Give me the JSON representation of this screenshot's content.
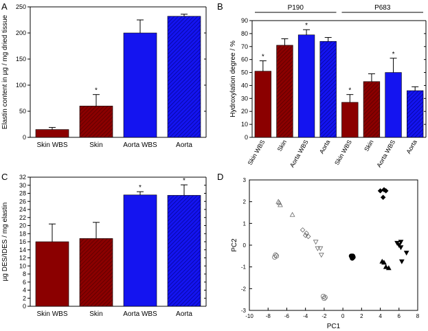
{
  "colors": {
    "dark_red": "#8b0000",
    "blue": "#1414f0",
    "dark_blue": "#0f0fa8",
    "axis": "#000000"
  },
  "chart_data": [
    {
      "panel": "A",
      "type": "bar",
      "ylabel": "Elastin content in µg / mg dried tissue",
      "ylim": [
        0,
        250
      ],
      "yticks": [
        0,
        50,
        100,
        150,
        200,
        250
      ],
      "categories": [
        "Skin WBS",
        "Skin",
        "Aorta WBS",
        "Aorta"
      ],
      "values": [
        15,
        60,
        200,
        232
      ],
      "errors": [
        4,
        22,
        25,
        4
      ],
      "significance": [
        "",
        "*",
        "",
        ""
      ],
      "bar_colors": [
        "#8b0000",
        "#8b0000",
        "#1414f0",
        "#0f0fa8"
      ],
      "hatched": [
        false,
        true,
        false,
        true
      ]
    },
    {
      "panel": "B",
      "type": "bar",
      "ylabel": "Hydroxylation degree / %",
      "ylim": [
        0,
        90
      ],
      "yticks": [
        0,
        10,
        20,
        30,
        40,
        50,
        60,
        70,
        80,
        90
      ],
      "groups": [
        "P190",
        "P683"
      ],
      "categories": [
        "Skin WBS",
        "Skin",
        "Aorta WBS",
        "Aorta",
        "Skin WBS",
        "Skin",
        "Aorta WBS",
        "Aorta"
      ],
      "values": [
        51,
        71,
        79,
        74,
        27,
        43,
        50,
        36
      ],
      "errors": [
        8,
        5,
        4,
        3,
        6,
        6,
        11,
        3
      ],
      "significance": [
        "*",
        "",
        "*",
        "",
        "*",
        "",
        "*",
        ""
      ],
      "bar_colors": [
        "#8b0000",
        "#8b0000",
        "#1414f0",
        "#0f0fa8",
        "#8b0000",
        "#8b0000",
        "#1414f0",
        "#0f0fa8"
      ],
      "hatched": [
        false,
        true,
        false,
        true,
        false,
        true,
        false,
        true
      ]
    },
    {
      "panel": "C",
      "type": "bar",
      "ylabel": "µg DES/IDES / mg elastin",
      "ylim": [
        0,
        32
      ],
      "yticks": [
        0,
        2,
        4,
        6,
        8,
        10,
        12,
        14,
        16,
        18,
        20,
        22,
        24,
        26,
        28,
        30,
        32
      ],
      "categories": [
        "Skin WBS",
        "Skin",
        "Aorta WBS",
        "Aorta"
      ],
      "values": [
        16,
        16.8,
        27.6,
        27.5
      ],
      "errors": [
        4.4,
        4,
        0.8,
        2.6
      ],
      "significance": [
        "",
        "",
        "*",
        "*"
      ],
      "bar_colors": [
        "#8b0000",
        "#8b0000",
        "#1414f0",
        "#0f0fa8"
      ],
      "hatched": [
        false,
        true,
        false,
        true
      ]
    },
    {
      "panel": "D",
      "type": "scatter",
      "xlabel": "PC1",
      "ylabel": "PC2",
      "xlim": [
        -10,
        8
      ],
      "ylim": [
        -3,
        3
      ],
      "xticks": [
        -10,
        -8,
        -6,
        -4,
        -2,
        0,
        2,
        4,
        6,
        8
      ],
      "yticks": [
        -3,
        -2,
        -1,
        0,
        1,
        2,
        3
      ],
      "series": [
        {
          "marker": "triangle-up-open",
          "points": [
            [
              -6.9,
              2.0
            ],
            [
              -6.7,
              1.85
            ],
            [
              -6.8,
              1.95
            ],
            [
              -5.4,
              1.4
            ]
          ]
        },
        {
          "marker": "diamond-open",
          "points": [
            [
              -4.3,
              0.7
            ],
            [
              -3.9,
              0.55
            ],
            [
              -4.0,
              0.45
            ],
            [
              -3.7,
              0.4
            ]
          ]
        },
        {
          "marker": "triangle-down-open",
          "points": [
            [
              -2.9,
              0.15
            ],
            [
              -2.7,
              -0.15
            ],
            [
              -2.4,
              -0.15
            ],
            [
              -2.3,
              -0.45
            ]
          ]
        },
        {
          "marker": "circle-open",
          "points": [
            [
              -7.2,
              -0.45
            ],
            [
              -7.3,
              -0.55
            ],
            [
              -7.1,
              -0.5
            ],
            [
              -2.1,
              -2.35
            ],
            [
              -1.9,
              -2.4
            ],
            [
              -2.0,
              -2.45
            ]
          ]
        },
        {
          "marker": "diamond-filled",
          "points": [
            [
              4.0,
              2.5
            ],
            [
              4.6,
              2.5
            ],
            [
              4.3,
              2.2
            ],
            [
              4.4,
              2.55
            ]
          ]
        },
        {
          "marker": "circle-filled",
          "points": [
            [
              0.9,
              -0.5
            ],
            [
              1.1,
              -0.55
            ],
            [
              1.0,
              -0.6
            ],
            [
              1.05,
              -0.5
            ]
          ]
        },
        {
          "marker": "triangle-down-filled",
          "points": [
            [
              5.8,
              0.1
            ],
            [
              6.2,
              0.15
            ],
            [
              6.0,
              0.0
            ],
            [
              6.2,
              -0.1
            ],
            [
              6.8,
              -0.35
            ],
            [
              6.3,
              -0.75
            ]
          ]
        },
        {
          "marker": "triangle-up-filled",
          "points": [
            [
              4.2,
              -0.75
            ],
            [
              4.6,
              -1.0
            ],
            [
              4.9,
              -1.05
            ],
            [
              4.4,
              -0.8
            ]
          ]
        }
      ]
    }
  ]
}
